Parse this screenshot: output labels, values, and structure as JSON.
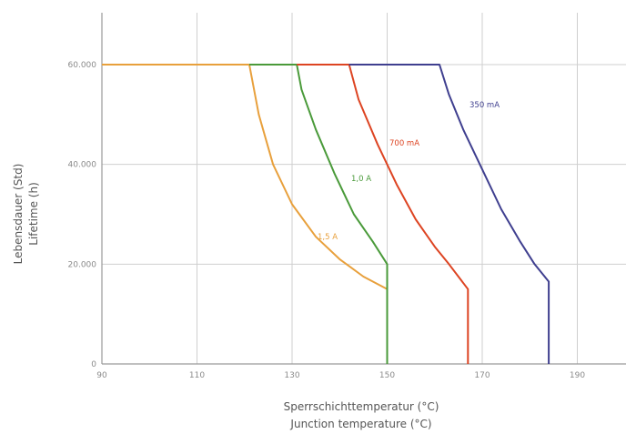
{
  "chart_data": {
    "type": "line",
    "title": "",
    "xlabel_line1": "Sperrschichttemperatur (°C)",
    "xlabel_line2": "Junction temperature (°C)",
    "ylabel_line1": "Lebensdauer (Std)",
    "ylabel_line2": "Lifetime (h)",
    "xlim": [
      90,
      195
    ],
    "ylim": [
      0,
      60000
    ],
    "x_ticks": [
      90,
      110,
      130,
      150,
      170,
      190
    ],
    "x_tick_labels": [
      "90",
      "110",
      "130",
      "150",
      "170",
      "190"
    ],
    "y_ticks": [
      0,
      20000,
      40000,
      60000
    ],
    "y_tick_labels": [
      "0",
      "20.000",
      "40.000",
      "60.000"
    ],
    "grid": true,
    "legend": "inline",
    "series": [
      {
        "name": "1,5 A",
        "color": "#e8a03c",
        "points": [
          [
            90,
            60000
          ],
          [
            121,
            60000
          ],
          [
            123,
            50000
          ],
          [
            126,
            40000
          ],
          [
            130,
            32000
          ],
          [
            135,
            25500
          ],
          [
            140,
            21000
          ],
          [
            145,
            17500
          ],
          [
            150,
            15000
          ],
          [
            150,
            0
          ]
        ]
      },
      {
        "name": "1,0 A",
        "color": "#4a9a3a",
        "points": [
          [
            121,
            60000
          ],
          [
            131,
            60000
          ],
          [
            132,
            55000
          ],
          [
            135,
            47000
          ],
          [
            139,
            38000
          ],
          [
            143,
            30000
          ],
          [
            147,
            24500
          ],
          [
            150,
            20000
          ],
          [
            150,
            0
          ]
        ]
      },
      {
        "name": "700 mA",
        "color": "#dd4422",
        "points": [
          [
            131,
            60000
          ],
          [
            142,
            60000
          ],
          [
            144,
            53000
          ],
          [
            148,
            44000
          ],
          [
            152,
            36000
          ],
          [
            156,
            29000
          ],
          [
            160,
            23500
          ],
          [
            163,
            20000
          ],
          [
            167,
            15000
          ],
          [
            167,
            0
          ]
        ]
      },
      {
        "name": "350 mA",
        "color": "#3f3f8f",
        "points": [
          [
            142,
            60000
          ],
          [
            161,
            60000
          ],
          [
            163,
            54000
          ],
          [
            166,
            47000
          ],
          [
            170,
            39000
          ],
          [
            174,
            31000
          ],
          [
            178,
            24500
          ],
          [
            181,
            20000
          ],
          [
            184,
            16500
          ],
          [
            184,
            0
          ]
        ]
      }
    ]
  }
}
